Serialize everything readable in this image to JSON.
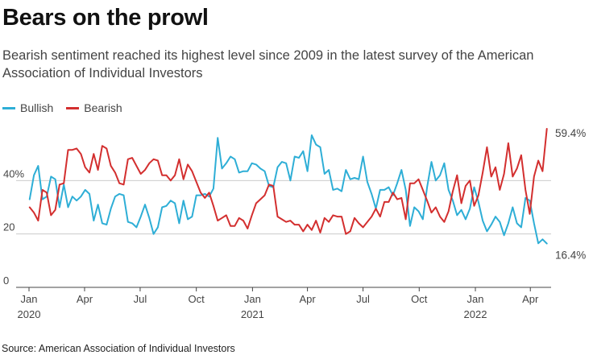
{
  "title": "Bears on the prowl",
  "subtitle": "Bearish sentiment reached its highest level since 2009 in the latest survey of the American Association of Individual Investors",
  "source": "Source: American Association of Individual Investors",
  "colors": {
    "bullish": "#2eaed6",
    "bearish": "#d32f2f",
    "grid": "#cccccc",
    "axis": "#444444",
    "text": "#444444"
  },
  "chart_data": {
    "type": "line",
    "legend_position": "top-left",
    "grid": true,
    "ylim": [
      0,
      60
    ],
    "xlim": [
      "2020-01-01",
      "2022-05-05"
    ],
    "yticks": [
      {
        "value": 0,
        "label": "0"
      },
      {
        "value": 20,
        "label": "20"
      },
      {
        "value": 40,
        "label": "40%"
      }
    ],
    "xticks": [
      {
        "date": "2020-01-01",
        "label": "Jan",
        "year": "2020"
      },
      {
        "date": "2020-04-01",
        "label": "Apr",
        "year": ""
      },
      {
        "date": "2020-07-01",
        "label": "Jul",
        "year": ""
      },
      {
        "date": "2020-10-01",
        "label": "Oct",
        "year": ""
      },
      {
        "date": "2021-01-01",
        "label": "Jan",
        "year": "2021"
      },
      {
        "date": "2021-04-01",
        "label": "Apr",
        "year": ""
      },
      {
        "date": "2021-07-01",
        "label": "Jul",
        "year": ""
      },
      {
        "date": "2021-10-01",
        "label": "Oct",
        "year": ""
      },
      {
        "date": "2022-01-01",
        "label": "Jan",
        "year": "2022"
      },
      {
        "date": "2022-04-01",
        "label": "Apr",
        "year": ""
      }
    ],
    "annotations": [
      {
        "series": "Bearish",
        "date": "2022-04-28",
        "value": 59.4,
        "label": "59.4%"
      },
      {
        "series": "Bullish",
        "date": "2022-04-28",
        "value": 16.4,
        "label": "16.4%"
      }
    ],
    "start_date": "2020-01-02",
    "interval_days": 7,
    "series": [
      {
        "name": "Bullish",
        "color": "#2eaed6",
        "values": [
          33.0,
          42.0,
          45.5,
          33.0,
          34.0,
          41.5,
          40.5,
          30.0,
          38.5,
          30.0,
          34.0,
          32.5,
          34.0,
          36.5,
          35.0,
          25.0,
          31.0,
          24.0,
          23.5,
          29.5,
          34.0,
          35.0,
          34.5,
          24.5,
          24.0,
          22.5,
          26.5,
          31.0,
          26.0,
          20.0,
          22.5,
          30.0,
          30.5,
          32.5,
          31.5,
          24.0,
          32.5,
          25.5,
          26.5,
          34.5,
          34.5,
          35.0,
          34.0,
          37.0,
          56.0,
          44.5,
          46.5,
          49.0,
          48.0,
          43.0,
          43.5,
          43.5,
          46.5,
          46.0,
          44.5,
          43.5,
          38.0,
          37.5,
          45.0,
          47.0,
          46.5,
          40.0,
          49.0,
          48.5,
          51.0,
          43.5,
          57.0,
          53.5,
          52.5,
          42.5,
          44.0,
          36.5,
          37.0,
          36.0,
          44.0,
          40.5,
          41.0,
          40.5,
          49.0,
          39.5,
          35.0,
          29.5,
          36.5,
          36.5,
          37.5,
          34.5,
          39.0,
          44.0,
          36.5,
          23.0,
          30.0,
          28.5,
          25.5,
          37.5,
          47.0,
          40.0,
          42.0,
          46.5,
          36.5,
          32.5,
          27.0,
          29.0,
          25.5,
          29.5,
          37.5,
          32.0,
          25.0,
          21.0,
          23.5,
          26.5,
          24.5,
          19.5,
          24.0,
          30.0,
          24.0,
          22.5,
          33.5,
          32.5,
          24.0,
          16.5,
          18.0,
          16.4
        ]
      },
      {
        "name": "Bearish",
        "color": "#d32f2f",
        "values": [
          30.0,
          28.0,
          25.0,
          36.5,
          35.5,
          27.0,
          29.0,
          38.5,
          39.0,
          51.5,
          51.5,
          52.0,
          50.0,
          45.0,
          43.0,
          50.0,
          44.0,
          53.0,
          52.0,
          45.5,
          43.0,
          39.0,
          38.5,
          48.0,
          48.5,
          45.5,
          42.5,
          44.0,
          46.5,
          48.0,
          47.5,
          42.0,
          42.0,
          40.0,
          42.0,
          48.0,
          40.5,
          46.0,
          43.5,
          39.5,
          35.5,
          33.5,
          35.5,
          30.5,
          25.0,
          26.0,
          27.0,
          23.0,
          23.0,
          26.0,
          25.0,
          22.0,
          27.0,
          31.5,
          33.0,
          34.5,
          38.5,
          38.0,
          26.5,
          25.5,
          24.5,
          25.0,
          23.5,
          23.5,
          21.0,
          23.5,
          21.5,
          25.0,
          20.5,
          26.0,
          24.5,
          27.0,
          26.5,
          26.5,
          20.0,
          21.0,
          26.0,
          24.0,
          22.5,
          24.5,
          26.5,
          29.5,
          26.5,
          32.0,
          32.0,
          35.5,
          33.0,
          33.5,
          25.5,
          39.0,
          39.0,
          40.5,
          36.5,
          32.5,
          28.0,
          30.0,
          26.5,
          24.5,
          28.5,
          36.0,
          42.0,
          31.5,
          38.0,
          40.0,
          30.5,
          34.5,
          43.0,
          52.5,
          41.5,
          45.0,
          36.5,
          42.5,
          54.0,
          41.5,
          44.5,
          49.5,
          36.5,
          27.5,
          41.5,
          47.5,
          43.5,
          59.4
        ]
      }
    ]
  }
}
